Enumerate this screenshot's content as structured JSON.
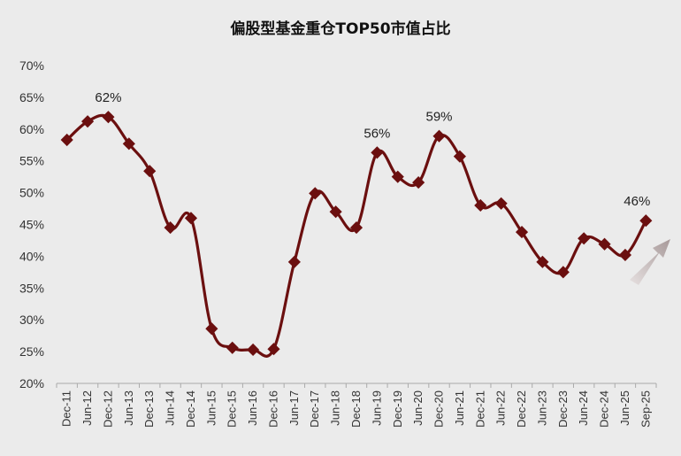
{
  "chart_data": {
    "type": "line",
    "title": "偏股型基金重仓TOP50市值占比",
    "xlabel": "",
    "ylabel": "",
    "ylim": [
      20,
      70
    ],
    "yticks": [
      "20%",
      "25%",
      "30%",
      "35%",
      "40%",
      "45%",
      "50%",
      "55%",
      "60%",
      "65%",
      "70%"
    ],
    "ytick_values": [
      20,
      25,
      30,
      35,
      40,
      45,
      50,
      55,
      60,
      65,
      70
    ],
    "grid": false,
    "legend": "none",
    "categories": [
      "Dec-11",
      "Jun-12",
      "Dec-12",
      "Jun-13",
      "Dec-13",
      "Jun-14",
      "Dec-14",
      "Jun-15",
      "Dec-15",
      "Jun-16",
      "Dec-16",
      "Jun-17",
      "Dec-17",
      "Jun-18",
      "Dec-18",
      "Jun-19",
      "Dec-19",
      "Jun-20",
      "Dec-20",
      "Jun-21",
      "Dec-21",
      "Jun-22",
      "Dec-22",
      "Jun-23",
      "Dec-23",
      "Jun-24",
      "Dec-24",
      "Jun-25",
      "Sep-25"
    ],
    "series": [
      {
        "name": "偏股型基金重仓TOP50市值占比",
        "color": "#6b0f0f",
        "values": [
          58.3,
          61.2,
          61.9,
          57.7,
          53.4,
          44.5,
          46.0,
          28.6,
          25.6,
          25.3,
          25.4,
          39.1,
          49.9,
          47.0,
          44.5,
          56.3,
          52.5,
          51.6,
          58.9,
          55.7,
          48.0,
          48.3,
          43.8,
          39.1,
          37.5,
          42.8,
          41.9,
          40.2,
          45.6
        ]
      }
    ],
    "annotations": [
      {
        "category": "Dec-12",
        "text": "62%"
      },
      {
        "category": "Jun-19",
        "text": "56%"
      },
      {
        "category": "Dec-20",
        "text": "59%"
      },
      {
        "category": "Sep-25",
        "text": "46%"
      }
    ],
    "trend_arrow": "up"
  }
}
